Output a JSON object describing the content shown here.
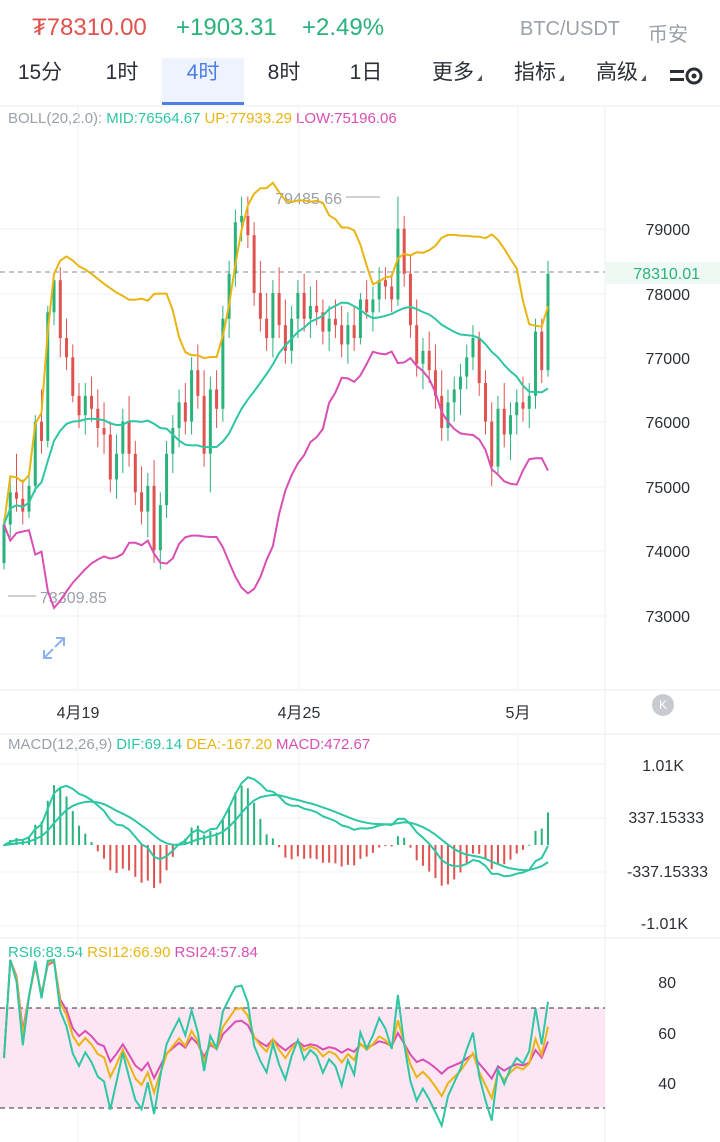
{
  "header": {
    "price": "₮78310.00",
    "change": "+1903.31",
    "change_pct": "+2.49%",
    "pair": "BTC/USDT",
    "exchange": "币安"
  },
  "tabs": [
    {
      "label": "15分",
      "active": false
    },
    {
      "label": "1时",
      "active": false
    },
    {
      "label": "4时",
      "active": true
    },
    {
      "label": "8时",
      "active": false
    },
    {
      "label": "1日",
      "active": false
    },
    {
      "label": "更多",
      "active": false
    },
    {
      "label": "指标",
      "active": false
    },
    {
      "label": "高级",
      "active": false
    }
  ],
  "boll": {
    "name": "BOLL(20,2.0):",
    "mid": "MID:76564.67",
    "up": "UP:77933.29",
    "low": "LOW:75196.06"
  },
  "macd": {
    "name": "MACD(12,26,9)",
    "dif": "DIF:69.14",
    "dea": "DEA:-167.20",
    "macd": "MACD:472.67",
    "ticks": [
      "1.01K",
      "337.15333",
      "-337.15333",
      "-1.01K"
    ]
  },
  "rsi": {
    "rsi6": "RSI6:83.54",
    "rsi12": "RSI12:66.90",
    "rsi24": "RSI24:57.84",
    "ticks": [
      "80",
      "60",
      "40"
    ]
  },
  "colors": {
    "up": "#29b37a",
    "down": "#e0524f",
    "mid": "#2ec6a3",
    "upper": "#e8b512",
    "lower": "#d94fb3",
    "accent": "#4a7ee9"
  },
  "icons": {
    "settings": "settings-slider-icon",
    "expand": "expand-arrows-icon",
    "kline": "k-badge-icon"
  },
  "chart_data": {
    "type": "candlestick",
    "y_ticks": [
      "79000",
      "78000",
      "77000",
      "76000",
      "75000",
      "74000",
      "73000"
    ],
    "x_ticks": [
      "4月19",
      "4月25",
      "5月"
    ],
    "current_price_label": "78310.01",
    "high_annotation": "79485.66",
    "low_annotation": "73309.85",
    "ylim": [
      72000,
      80500
    ],
    "candles": [
      [
        73800,
        74500,
        73700,
        74400
      ],
      [
        74400,
        75100,
        74200,
        74900
      ],
      [
        74900,
        75500,
        74600,
        74800
      ],
      [
        74800,
        75100,
        74400,
        74600
      ],
      [
        74600,
        75200,
        74500,
        75000
      ],
      [
        75000,
        76100,
        74900,
        76000
      ],
      [
        76000,
        76500,
        75500,
        75700
      ],
      [
        75700,
        77800,
        75600,
        77700
      ],
      [
        77700,
        78300,
        77500,
        78200
      ],
      [
        78200,
        78400,
        77000,
        77300
      ],
      [
        77300,
        77600,
        76800,
        77000
      ],
      [
        77000,
        77200,
        76300,
        76400
      ],
      [
        76400,
        76600,
        75900,
        76100
      ],
      [
        76100,
        76600,
        75800,
        76400
      ],
      [
        76400,
        76700,
        76000,
        76200
      ],
      [
        76200,
        76500,
        75600,
        75900
      ],
      [
        75900,
        76300,
        75500,
        75800
      ],
      [
        75800,
        76000,
        74900,
        75100
      ],
      [
        75100,
        75800,
        74800,
        75500
      ],
      [
        75500,
        76200,
        75200,
        76000
      ],
      [
        76000,
        76400,
        75300,
        75500
      ],
      [
        75500,
        75700,
        74700,
        74900
      ],
      [
        74900,
        75300,
        74400,
        74600
      ],
      [
        74600,
        75200,
        74200,
        75000
      ],
      [
        75000,
        75400,
        73800,
        74000
      ],
      [
        74000,
        74900,
        73700,
        74700
      ],
      [
        74700,
        75700,
        74500,
        75500
      ],
      [
        75500,
        76100,
        75200,
        75900
      ],
      [
        75900,
        76500,
        75600,
        76300
      ],
      [
        76300,
        76600,
        75800,
        76000
      ],
      [
        76000,
        77000,
        75800,
        76800
      ],
      [
        76800,
        77200,
        76200,
        76400
      ],
      [
        76400,
        76800,
        75300,
        75500
      ],
      [
        75500,
        76700,
        74900,
        76500
      ],
      [
        76500,
        76800,
        75900,
        76200
      ],
      [
        76200,
        77800,
        76000,
        77600
      ],
      [
        77600,
        78500,
        77300,
        78300
      ],
      [
        78300,
        79300,
        78100,
        79100
      ],
      [
        79100,
        79500,
        78800,
        79200
      ],
      [
        79200,
        79500,
        78700,
        78900
      ],
      [
        78900,
        79100,
        77800,
        78000
      ],
      [
        78000,
        78500,
        77400,
        77600
      ],
      [
        77600,
        78000,
        77100,
        77300
      ],
      [
        77300,
        78200,
        77000,
        78000
      ],
      [
        78000,
        78400,
        77300,
        77500
      ],
      [
        77500,
        77900,
        76900,
        77100
      ],
      [
        77100,
        77800,
        76900,
        77600
      ],
      [
        77600,
        78200,
        77300,
        78000
      ],
      [
        78000,
        78300,
        77400,
        77600
      ],
      [
        77600,
        78100,
        77300,
        77800
      ],
      [
        77800,
        78200,
        77500,
        77700
      ],
      [
        77700,
        77900,
        77200,
        77400
      ],
      [
        77400,
        77800,
        77100,
        77600
      ],
      [
        77600,
        77900,
        77300,
        77500
      ],
      [
        77500,
        77800,
        77000,
        77200
      ],
      [
        77200,
        77700,
        76900,
        77500
      ],
      [
        77500,
        77800,
        77100,
        77300
      ],
      [
        77300,
        78000,
        77200,
        77900
      ],
      [
        77900,
        78200,
        77600,
        77700
      ],
      [
        77700,
        78100,
        77400,
        77900
      ],
      [
        77900,
        78400,
        77700,
        78200
      ],
      [
        78200,
        78400,
        77900,
        78100
      ],
      [
        78100,
        78300,
        77700,
        77900
      ],
      [
        77900,
        79500,
        77800,
        79000
      ],
      [
        79000,
        79200,
        78100,
        78300
      ],
      [
        78300,
        78600,
        77300,
        77500
      ],
      [
        77500,
        77900,
        76700,
        76900
      ],
      [
        76900,
        77300,
        76500,
        77100
      ],
      [
        77100,
        77400,
        76600,
        76800
      ],
      [
        76800,
        77200,
        76200,
        76400
      ],
      [
        76400,
        76800,
        75700,
        75900
      ],
      [
        75900,
        76500,
        75700,
        76300
      ],
      [
        76300,
        76700,
        76000,
        76500
      ],
      [
        76500,
        76900,
        76100,
        76700
      ],
      [
        76700,
        77200,
        76500,
        77000
      ],
      [
        77000,
        77500,
        76800,
        77300
      ],
      [
        77300,
        77400,
        76400,
        76600
      ],
      [
        76600,
        76800,
        75800,
        76000
      ],
      [
        76000,
        76300,
        75000,
        75300
      ],
      [
        75300,
        76400,
        75200,
        76200
      ],
      [
        76200,
        76600,
        75600,
        75800
      ],
      [
        75800,
        76300,
        75400,
        76100
      ],
      [
        76100,
        76500,
        75800,
        76300
      ],
      [
        76300,
        76700,
        76000,
        76200
      ],
      [
        76200,
        76600,
        75900,
        76400
      ],
      [
        76400,
        77600,
        76200,
        77400
      ],
      [
        77400,
        77600,
        76600,
        76800
      ],
      [
        76800,
        78500,
        76700,
        78300
      ]
    ]
  }
}
